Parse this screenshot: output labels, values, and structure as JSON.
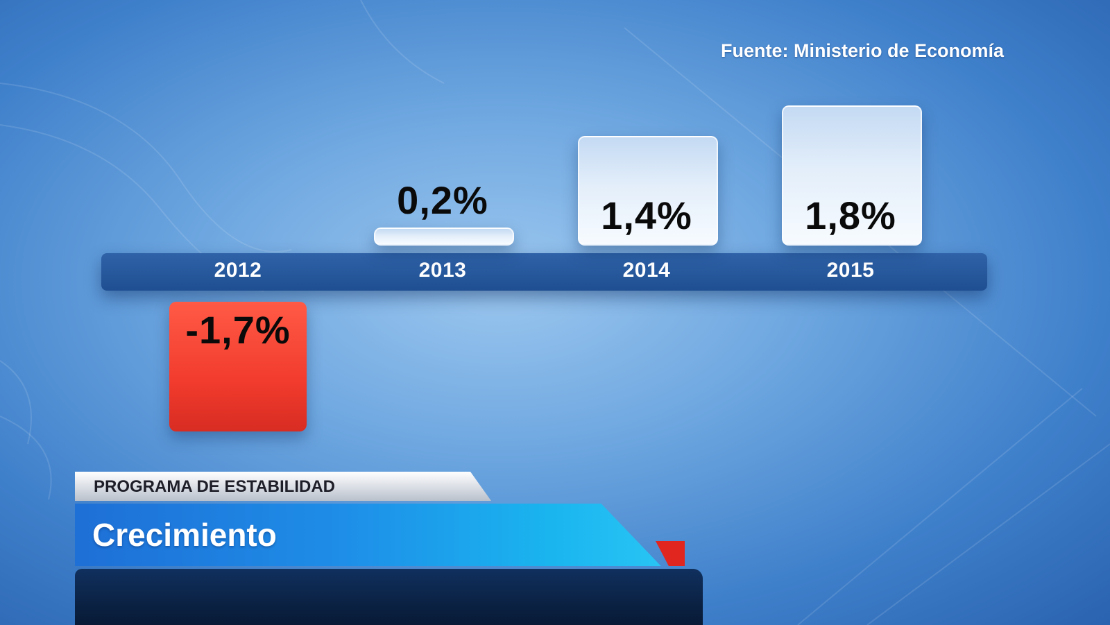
{
  "source": "Fuente: Ministerio de Economía",
  "caption": {
    "subtitle": "PROGRAMA DE ESTABILIDAD",
    "title": "Crecimiento"
  },
  "colors": {
    "positive_bar": "#e9f2fc",
    "negative_bar": "#f23c2e",
    "axis_bar": "#2458a0",
    "title_band": "#1ab5ef",
    "accent_red": "#e0261f"
  },
  "chart_data": {
    "type": "bar",
    "categories": [
      "2012",
      "2013",
      "2014",
      "2015"
    ],
    "values": [
      -1.7,
      0.2,
      1.4,
      1.8
    ],
    "value_labels": [
      "-1,7%",
      "0,2%",
      "1,4%",
      "1,8%"
    ],
    "title": "Crecimiento",
    "xlabel": "",
    "ylabel": "",
    "ylim": [
      -1.7,
      1.8
    ],
    "grid": false,
    "legend": "none"
  }
}
